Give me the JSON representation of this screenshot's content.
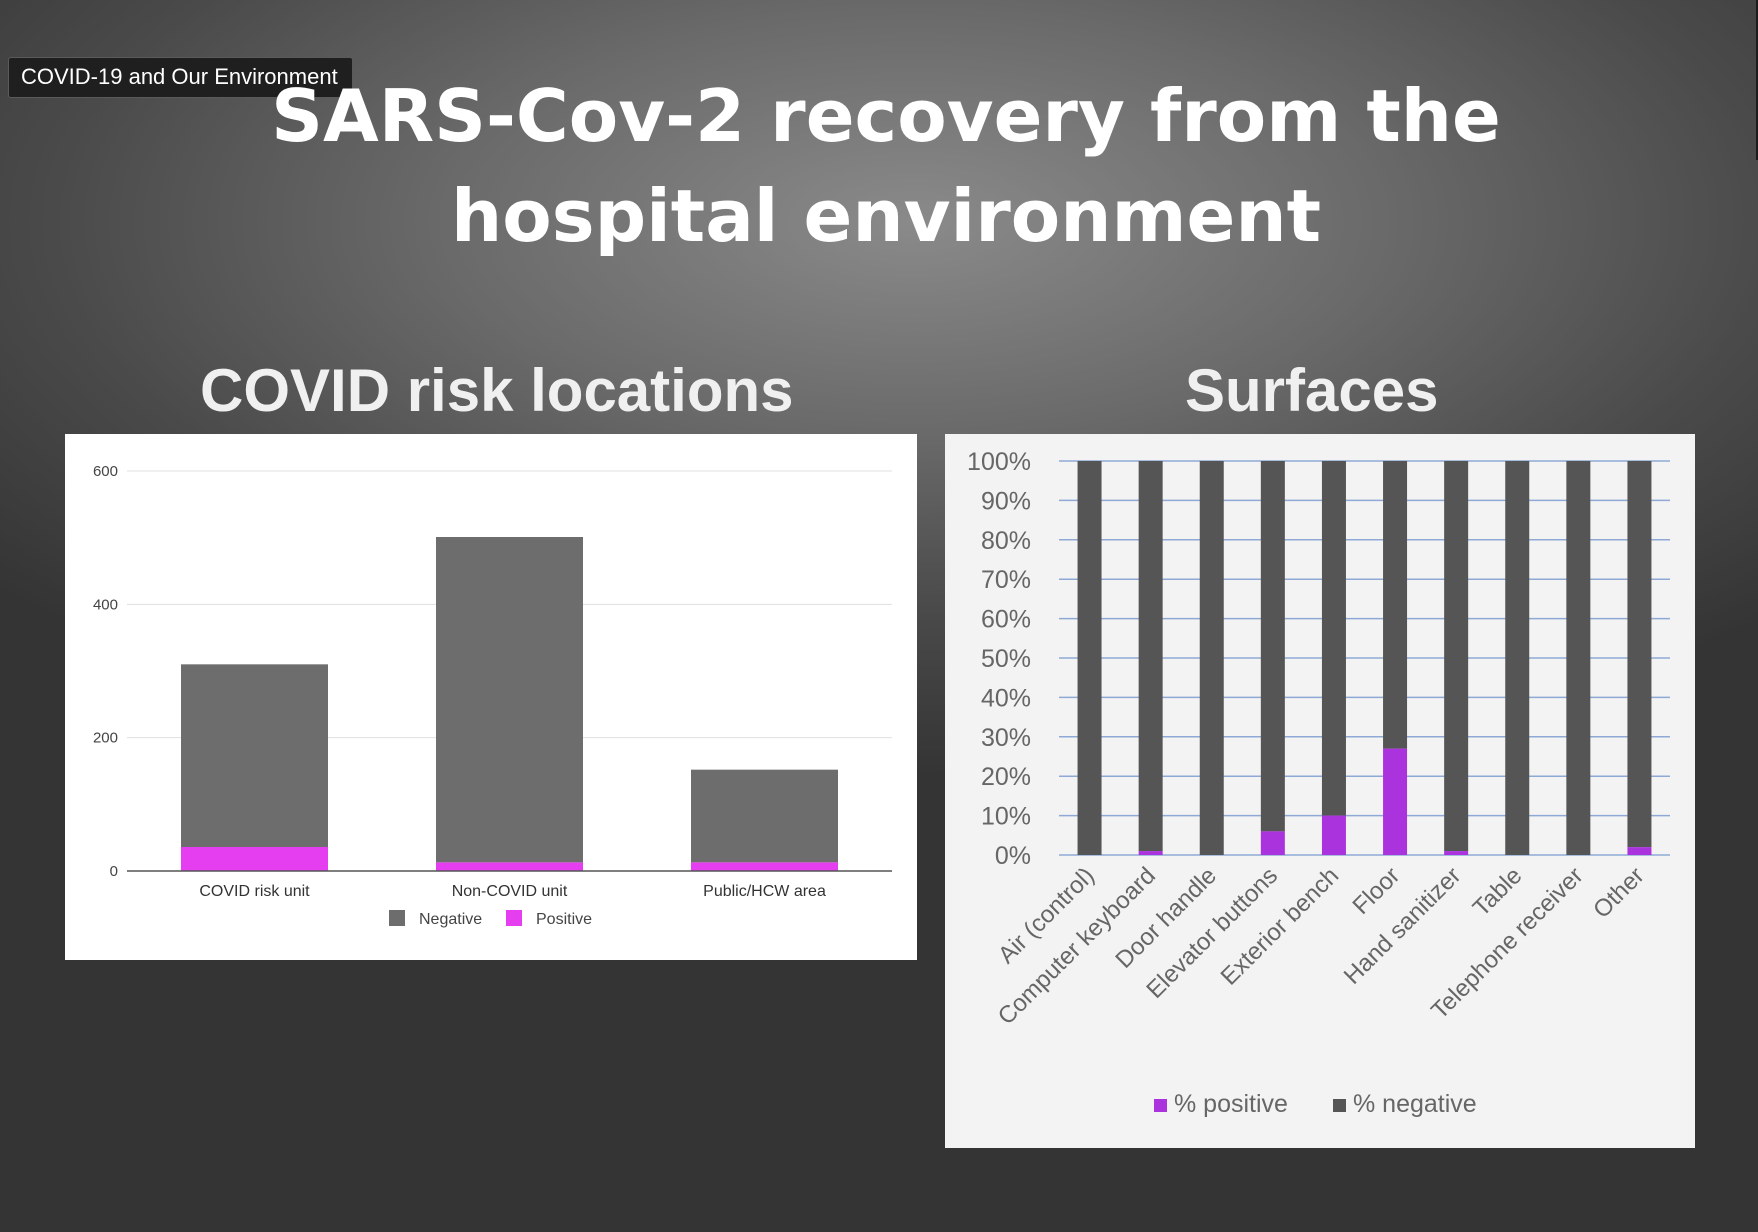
{
  "video_label": "COVID-19 and Our Environment",
  "slide": {
    "title_line1": "SARS-Cov-2 recovery from the",
    "title_line2": "hospital environment",
    "left_heading": "COVID risk locations",
    "right_heading": "Surfaces"
  },
  "colors": {
    "negative_gray": "#6d6d6d",
    "positive_magenta": "#e43ef0",
    "surface_negative": "#555555",
    "surface_positive": "#aa33dd",
    "gridline_blue": "#8fa9d6"
  },
  "chart_data": [
    {
      "type": "bar",
      "stacked": true,
      "title": "",
      "xlabel": "",
      "ylabel": "",
      "categories": [
        "COVID risk unit",
        "Non-COVID unit",
        "Public/HCW area"
      ],
      "series": [
        {
          "name": "Negative",
          "values": [
            274,
            488,
            139
          ]
        },
        {
          "name": "Positive",
          "values": [
            36,
            13,
            13
          ]
        }
      ],
      "ylim": [
        0,
        600
      ],
      "yticks": [
        0,
        200,
        400,
        600
      ],
      "grid": true,
      "legend_position": "bottom"
    },
    {
      "type": "bar",
      "stacked": true,
      "title": "",
      "xlabel": "",
      "ylabel": "",
      "categories": [
        "Air (control)",
        "Computer keyboard",
        "Door handle",
        "Elevator buttons",
        "Exterior bench",
        "Floor",
        "Hand sanitizer",
        "Table",
        "Telephone receiver",
        "Other"
      ],
      "series": [
        {
          "name": "% positive",
          "values": [
            0,
            1,
            0,
            6,
            10,
            27,
            1,
            0,
            0,
            2
          ]
        },
        {
          "name": "% negative",
          "values": [
            100,
            99,
            100,
            94,
            90,
            73,
            99,
            100,
            100,
            98
          ]
        }
      ],
      "ylim": [
        0,
        100
      ],
      "yticks": [
        "0%",
        "10%",
        "20%",
        "30%",
        "40%",
        "50%",
        "60%",
        "70%",
        "80%",
        "90%",
        "100%"
      ],
      "grid": true,
      "legend_position": "bottom"
    }
  ]
}
